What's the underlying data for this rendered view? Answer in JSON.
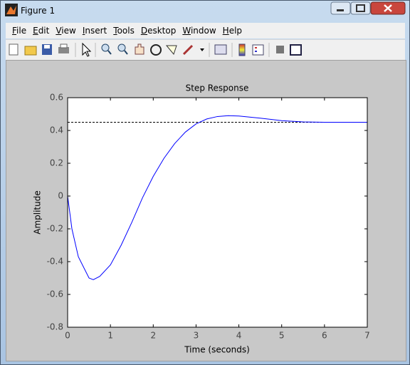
{
  "window": {
    "title": "Figure 1",
    "menu": [
      "File",
      "Edit",
      "View",
      "Insert",
      "Tools",
      "Desktop",
      "Window",
      "Help"
    ]
  },
  "chart_data": {
    "type": "line",
    "title": "Step Response",
    "x_label": "Time (seconds)",
    "y_label": "Amplitude",
    "x": [
      0,
      0.1,
      0.25,
      0.5,
      0.6,
      0.75,
      1,
      1.25,
      1.5,
      1.75,
      2,
      2.25,
      2.5,
      2.75,
      3,
      3.25,
      3.5,
      3.75,
      4,
      4.5,
      5,
      5.5,
      6,
      7
    ],
    "values": [
      0,
      -0.2,
      -0.37,
      -0.5,
      -0.51,
      -0.49,
      -0.42,
      -0.3,
      -0.16,
      -0.01,
      0.12,
      0.23,
      0.32,
      0.39,
      0.44,
      0.47,
      0.485,
      0.49,
      0.488,
      0.475,
      0.46,
      0.452,
      0.45,
      0.45
    ],
    "color": "#0000ff",
    "steady_state": 0.45,
    "xlim": [
      0,
      7
    ],
    "ylim": [
      -0.8,
      0.6
    ],
    "xticks": [
      0,
      1,
      2,
      3,
      4,
      5,
      6,
      7
    ],
    "yticks": [
      -0.8,
      -0.6,
      -0.4,
      -0.2,
      0,
      0.2,
      0.4,
      0.6
    ]
  }
}
